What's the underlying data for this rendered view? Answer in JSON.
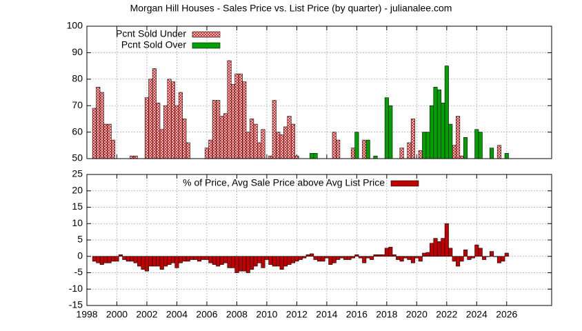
{
  "chart_data": [
    {
      "type": "bar",
      "title": "Morgan Hill Houses - Sales Price vs. List Price (by quarter) - julianalee.com",
      "x": [
        1998.5,
        1998.75,
        1999,
        1999.25,
        1999.5,
        1999.75,
        2000,
        2000.25,
        2000.5,
        2000.75,
        2001,
        2001.25,
        2001.5,
        2001.75,
        2002,
        2002.25,
        2002.5,
        2002.75,
        2003,
        2003.25,
        2003.5,
        2003.75,
        2004,
        2004.25,
        2004.5,
        2004.75,
        2005,
        2005.25,
        2005.5,
        2005.75,
        2006,
        2006.25,
        2006.5,
        2006.75,
        2007,
        2007.25,
        2007.5,
        2007.75,
        2008,
        2008.25,
        2008.5,
        2008.75,
        2009,
        2009.25,
        2009.5,
        2009.75,
        2010,
        2010.25,
        2010.5,
        2010.75,
        2011,
        2011.25,
        2011.5,
        2011.75,
        2012,
        2012.25,
        2012.5,
        2012.75,
        2013,
        2013.25,
        2013.5,
        2013.75,
        2014,
        2014.25,
        2014.5,
        2014.75,
        2015,
        2015.25,
        2015.5,
        2015.75,
        2016,
        2016.25,
        2016.5,
        2016.75,
        2017,
        2017.25,
        2017.5,
        2017.75,
        2018,
        2018.25,
        2018.5,
        2018.75,
        2019,
        2019.25,
        2019.5,
        2019.75,
        2020,
        2020.25,
        2020.5,
        2020.75,
        2021,
        2021.25,
        2021.5,
        2021.75,
        2022,
        2022.25,
        2022.5,
        2022.75,
        2023,
        2023.25,
        2023.5,
        2023.75,
        2024,
        2024.25,
        2024.5,
        2024.75,
        2025,
        2025.25,
        2025.5,
        2025.75,
        2026
      ],
      "series": [
        {
          "name": "Pcnt Sold Under",
          "color": "#ffd0d0",
          "hatch": "#c00000",
          "values": [
            69,
            77,
            75,
            63,
            63,
            57,
            null,
            null,
            null,
            null,
            51,
            51,
            null,
            null,
            73,
            80,
            84,
            71,
            61,
            70,
            80,
            79,
            70,
            75,
            65,
            56,
            null,
            null,
            null,
            null,
            54,
            57,
            72,
            72,
            66,
            67,
            87,
            78,
            82,
            82,
            79,
            60,
            65,
            63,
            56,
            61,
            null,
            51,
            72,
            60,
            59,
            62,
            66,
            63,
            51,
            null,
            null,
            null,
            null,
            null,
            null,
            null,
            null,
            null,
            60,
            57,
            null,
            null,
            null,
            54,
            null,
            null,
            57,
            null,
            null,
            null,
            null,
            null,
            null,
            null,
            null,
            null,
            54,
            null,
            56,
            65,
            null,
            53,
            null,
            null,
            null,
            null,
            null,
            null,
            null,
            null,
            55,
            66,
            51,
            null,
            null,
            null,
            null,
            null,
            null,
            null,
            null,
            null,
            55,
            null,
            null
          ]
        },
        {
          "name": "Pcnt Sold Over",
          "color": "#00a000",
          "values": [
            null,
            null,
            null,
            null,
            null,
            null,
            null,
            null,
            null,
            null,
            null,
            null,
            null,
            null,
            null,
            null,
            null,
            null,
            null,
            null,
            null,
            null,
            null,
            null,
            null,
            null,
            null,
            null,
            null,
            null,
            null,
            null,
            null,
            null,
            null,
            null,
            null,
            null,
            null,
            null,
            null,
            null,
            null,
            null,
            null,
            null,
            null,
            null,
            null,
            null,
            null,
            null,
            null,
            null,
            null,
            null,
            null,
            null,
            52,
            52,
            null,
            null,
            null,
            null,
            null,
            null,
            null,
            null,
            null,
            null,
            60,
            null,
            null,
            57,
            null,
            51,
            null,
            null,
            73,
            70,
            null,
            null,
            null,
            null,
            null,
            null,
            null,
            null,
            60,
            60,
            70,
            77,
            76,
            71,
            85,
            63,
            null,
            null,
            null,
            58,
            null,
            null,
            61,
            60,
            null,
            null,
            54,
            null,
            null,
            null,
            52
          ]
        }
      ],
      "xlim": [
        1998,
        2029
      ],
      "ylim": [
        50,
        100
      ],
      "yticks": [
        50,
        60,
        70,
        80,
        90,
        100
      ],
      "grid": true,
      "legend": "top-left"
    },
    {
      "type": "bar",
      "x": [
        1998.5,
        1998.75,
        1999,
        1999.25,
        1999.5,
        1999.75,
        2000,
        2000.25,
        2000.5,
        2000.75,
        2001,
        2001.25,
        2001.5,
        2001.75,
        2002,
        2002.25,
        2002.5,
        2002.75,
        2003,
        2003.25,
        2003.5,
        2003.75,
        2004,
        2004.25,
        2004.5,
        2004.75,
        2005,
        2005.25,
        2005.5,
        2005.75,
        2006,
        2006.25,
        2006.5,
        2006.75,
        2007,
        2007.25,
        2007.5,
        2007.75,
        2008,
        2008.25,
        2008.5,
        2008.75,
        2009,
        2009.25,
        2009.5,
        2009.75,
        2010,
        2010.25,
        2010.5,
        2010.75,
        2011,
        2011.25,
        2011.5,
        2011.75,
        2012,
        2012.25,
        2012.5,
        2012.75,
        2013,
        2013.25,
        2013.5,
        2013.75,
        2014,
        2014.25,
        2014.5,
        2014.75,
        2015,
        2015.25,
        2015.5,
        2015.75,
        2016,
        2016.25,
        2016.5,
        2016.75,
        2017,
        2017.25,
        2017.5,
        2017.75,
        2018,
        2018.25,
        2018.5,
        2018.75,
        2019,
        2019.25,
        2019.5,
        2019.75,
        2020,
        2020.25,
        2020.5,
        2020.75,
        2021,
        2021.25,
        2021.5,
        2021.75,
        2022,
        2022.25,
        2022.5,
        2022.75,
        2023,
        2023.25,
        2023.5,
        2023.75,
        2024,
        2024.25,
        2024.5,
        2024.75,
        2025,
        2025.25,
        2025.5,
        2025.75,
        2026
      ],
      "series": [
        {
          "name": "% of Price, Avg Sale Price above Avg List Price",
          "color": "#c00000",
          "values": [
            -1.5,
            -2,
            -2.5,
            -2,
            -2,
            -1.5,
            -1.5,
            0.5,
            -1,
            -1.5,
            -1.5,
            -2,
            -3,
            -4,
            -4.5,
            -3,
            -3,
            -3,
            -4,
            -3,
            -2.5,
            -2,
            -3.5,
            -2,
            -1.5,
            -1.5,
            -1,
            -1,
            -1.5,
            -1,
            -1,
            -2,
            -2.5,
            -3,
            -2.5,
            -2,
            -3.5,
            -3.5,
            -5,
            -4.5,
            -4.5,
            -5,
            -4,
            -3,
            -2,
            -3.5,
            -1,
            -2.5,
            -3,
            -3,
            -4,
            -3,
            -2.5,
            -2,
            -1.5,
            -1,
            -0.5,
            0.5,
            0.8,
            -1,
            -1.5,
            -1.5,
            -0.5,
            -2.5,
            -2,
            -1,
            -0.5,
            -1,
            -1,
            -0.5,
            0.5,
            -0.5,
            -2,
            -0.5,
            -1,
            0.5,
            0.5,
            0.5,
            2.5,
            2.8,
            0.5,
            -1,
            -1.5,
            -0.5,
            -1,
            -2,
            -0.5,
            -1.5,
            1,
            1.2,
            4,
            5.5,
            4.5,
            5.5,
            10,
            2.5,
            -1.5,
            -3,
            -1.5,
            2,
            -1,
            -0.5,
            3.5,
            2.5,
            -1,
            0,
            1.5,
            0,
            -2,
            -1.5,
            1
          ]
        }
      ],
      "xlim": [
        1998,
        2029
      ],
      "xticks": [
        1998,
        2000,
        2002,
        2004,
        2006,
        2008,
        2010,
        2012,
        2014,
        2016,
        2018,
        2020,
        2022,
        2024,
        2026
      ],
      "ylim": [
        -15,
        25
      ],
      "yticks": [
        -15,
        -10,
        -5,
        0,
        5,
        10,
        15,
        20,
        25
      ],
      "grid": true,
      "legend": "top-center"
    }
  ]
}
